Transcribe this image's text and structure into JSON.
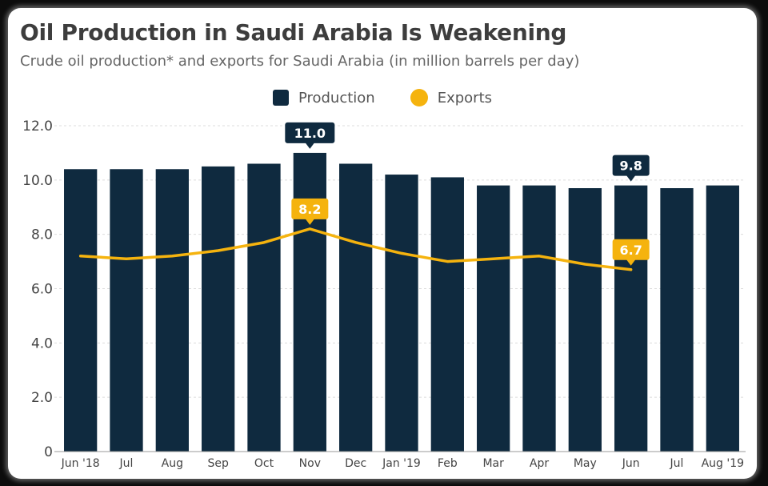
{
  "header": {
    "title": "Oil Production in Saudi Arabia Is Weakening",
    "subtitle": "Crude oil production* and exports for Saudi Arabia (in million barrels per day)"
  },
  "colors": {
    "production": "#0f2a3f",
    "exports": "#f5b30e",
    "grid": "#dcdcdc"
  },
  "chart_data": {
    "type": "bar",
    "categories": [
      "Jun '18",
      "Jul",
      "Aug",
      "Sep",
      "Oct",
      "Nov",
      "Dec",
      "Jan '19",
      "Feb",
      "Mar",
      "Apr",
      "May",
      "Jun",
      "Jul",
      "Aug '19"
    ],
    "series": [
      {
        "name": "Production",
        "type": "bar",
        "values": [
          10.4,
          10.4,
          10.4,
          10.5,
          10.6,
          11.0,
          10.6,
          10.2,
          10.1,
          9.8,
          9.8,
          9.7,
          9.8,
          9.7,
          9.8
        ]
      },
      {
        "name": "Exports",
        "type": "line",
        "values": [
          7.2,
          7.1,
          7.2,
          7.4,
          7.7,
          8.2,
          7.7,
          7.3,
          7.0,
          7.1,
          7.2,
          6.9,
          6.7,
          null,
          null
        ]
      }
    ],
    "data_labels": [
      {
        "series": 0,
        "index": 5,
        "text": "11.0"
      },
      {
        "series": 0,
        "index": 12,
        "text": "9.8"
      },
      {
        "series": 1,
        "index": 5,
        "text": "8.2"
      },
      {
        "series": 1,
        "index": 12,
        "text": "6.7"
      }
    ],
    "yticks": [
      {
        "value": 0,
        "label": "0"
      },
      {
        "value": 2,
        "label": "2.0"
      },
      {
        "value": 4,
        "label": "4.0"
      },
      {
        "value": 6,
        "label": "6.0"
      },
      {
        "value": 8,
        "label": "8.0"
      },
      {
        "value": 10,
        "label": "10.0"
      },
      {
        "value": 12,
        "label": "12.0"
      }
    ],
    "ylim": [
      0,
      12
    ],
    "grid": true,
    "legend": "top-center"
  }
}
